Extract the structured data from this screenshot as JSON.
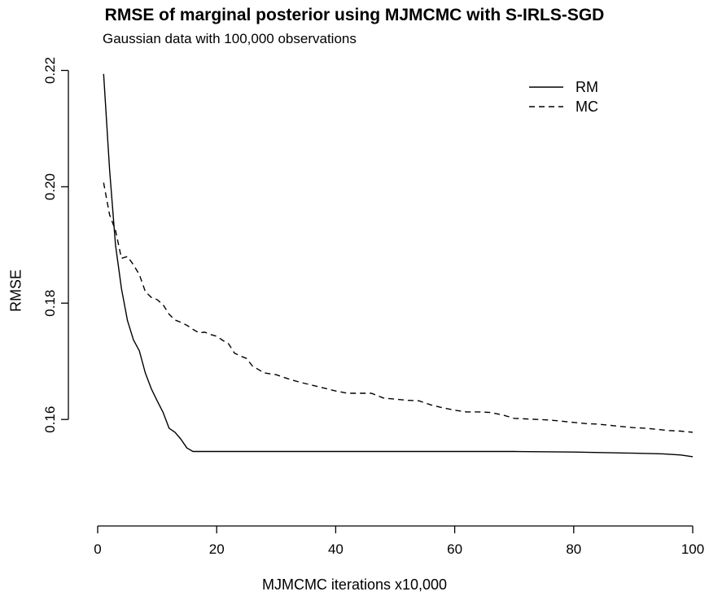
{
  "chart_data": {
    "type": "line",
    "title": "RMSE of marginal posterior using MJMCMC with S-IRLS-SGD",
    "subtitle": "Gaussian data with 100,000 observations",
    "xlabel": "MJMCMC iterations x10,000",
    "ylabel": "RMSE",
    "xlim": [
      0,
      100
    ],
    "ylim": [
      0.15,
      0.22
    ],
    "xticks": [
      0,
      20,
      40,
      60,
      80,
      100
    ],
    "yticks": [
      0.16,
      0.18,
      0.2,
      0.22
    ],
    "ytick_labels": [
      "0.16",
      "0.18",
      "0.20",
      "0.22"
    ],
    "grid": false,
    "legend": "top-right",
    "series": [
      {
        "name": "RM",
        "linestyle": "solid",
        "color": "#000000",
        "x": [
          1,
          2,
          3,
          4,
          5,
          6,
          7,
          8,
          9,
          10,
          11,
          12,
          13,
          14,
          15,
          16,
          20,
          30,
          40,
          50,
          60,
          70,
          80,
          90,
          95,
          98,
          100
        ],
        "y": [
          0.2194,
          0.203,
          0.19,
          0.1825,
          0.177,
          0.1737,
          0.1718,
          0.168,
          0.1653,
          0.1632,
          0.1612,
          0.1585,
          0.1578,
          0.1566,
          0.1551,
          0.1545,
          0.1545,
          0.1545,
          0.1545,
          0.1545,
          0.1545,
          0.1545,
          0.1544,
          0.1542,
          0.1541,
          0.1539,
          0.1536
        ]
      },
      {
        "name": "MC",
        "linestyle": "dashed",
        "color": "#000000",
        "x": [
          1,
          2,
          3,
          4,
          5,
          6,
          7,
          8,
          9,
          10,
          11,
          12,
          13,
          14,
          15,
          16,
          17,
          18,
          19,
          20,
          21,
          22,
          23,
          24,
          25,
          26,
          27,
          28,
          30,
          32,
          34,
          36,
          38,
          40,
          42,
          44,
          46,
          48,
          50,
          52,
          54,
          56,
          58,
          60,
          62,
          64,
          66,
          68,
          70,
          72,
          74,
          76,
          78,
          80,
          82,
          84,
          86,
          88,
          90,
          92,
          94,
          96,
          98,
          100
        ],
        "y": [
          0.2007,
          0.1952,
          0.1925,
          0.1877,
          0.188,
          0.1866,
          0.1849,
          0.182,
          0.181,
          0.1806,
          0.1797,
          0.1781,
          0.1771,
          0.1767,
          0.1762,
          0.1755,
          0.1749,
          0.175,
          0.1746,
          0.1743,
          0.1736,
          0.173,
          0.1714,
          0.1709,
          0.1705,
          0.1692,
          0.1686,
          0.168,
          0.1677,
          0.167,
          0.1664,
          0.1659,
          0.1654,
          0.1649,
          0.1645,
          0.1645,
          0.1645,
          0.1637,
          0.1635,
          0.1633,
          0.1632,
          0.1625,
          0.162,
          0.1616,
          0.1613,
          0.1613,
          0.1612,
          0.1608,
          0.1602,
          0.1601,
          0.16,
          0.1599,
          0.1597,
          0.1595,
          0.1593,
          0.1592,
          0.159,
          0.1588,
          0.1586,
          0.1585,
          0.1583,
          0.1581,
          0.158,
          0.1578
        ]
      }
    ]
  }
}
